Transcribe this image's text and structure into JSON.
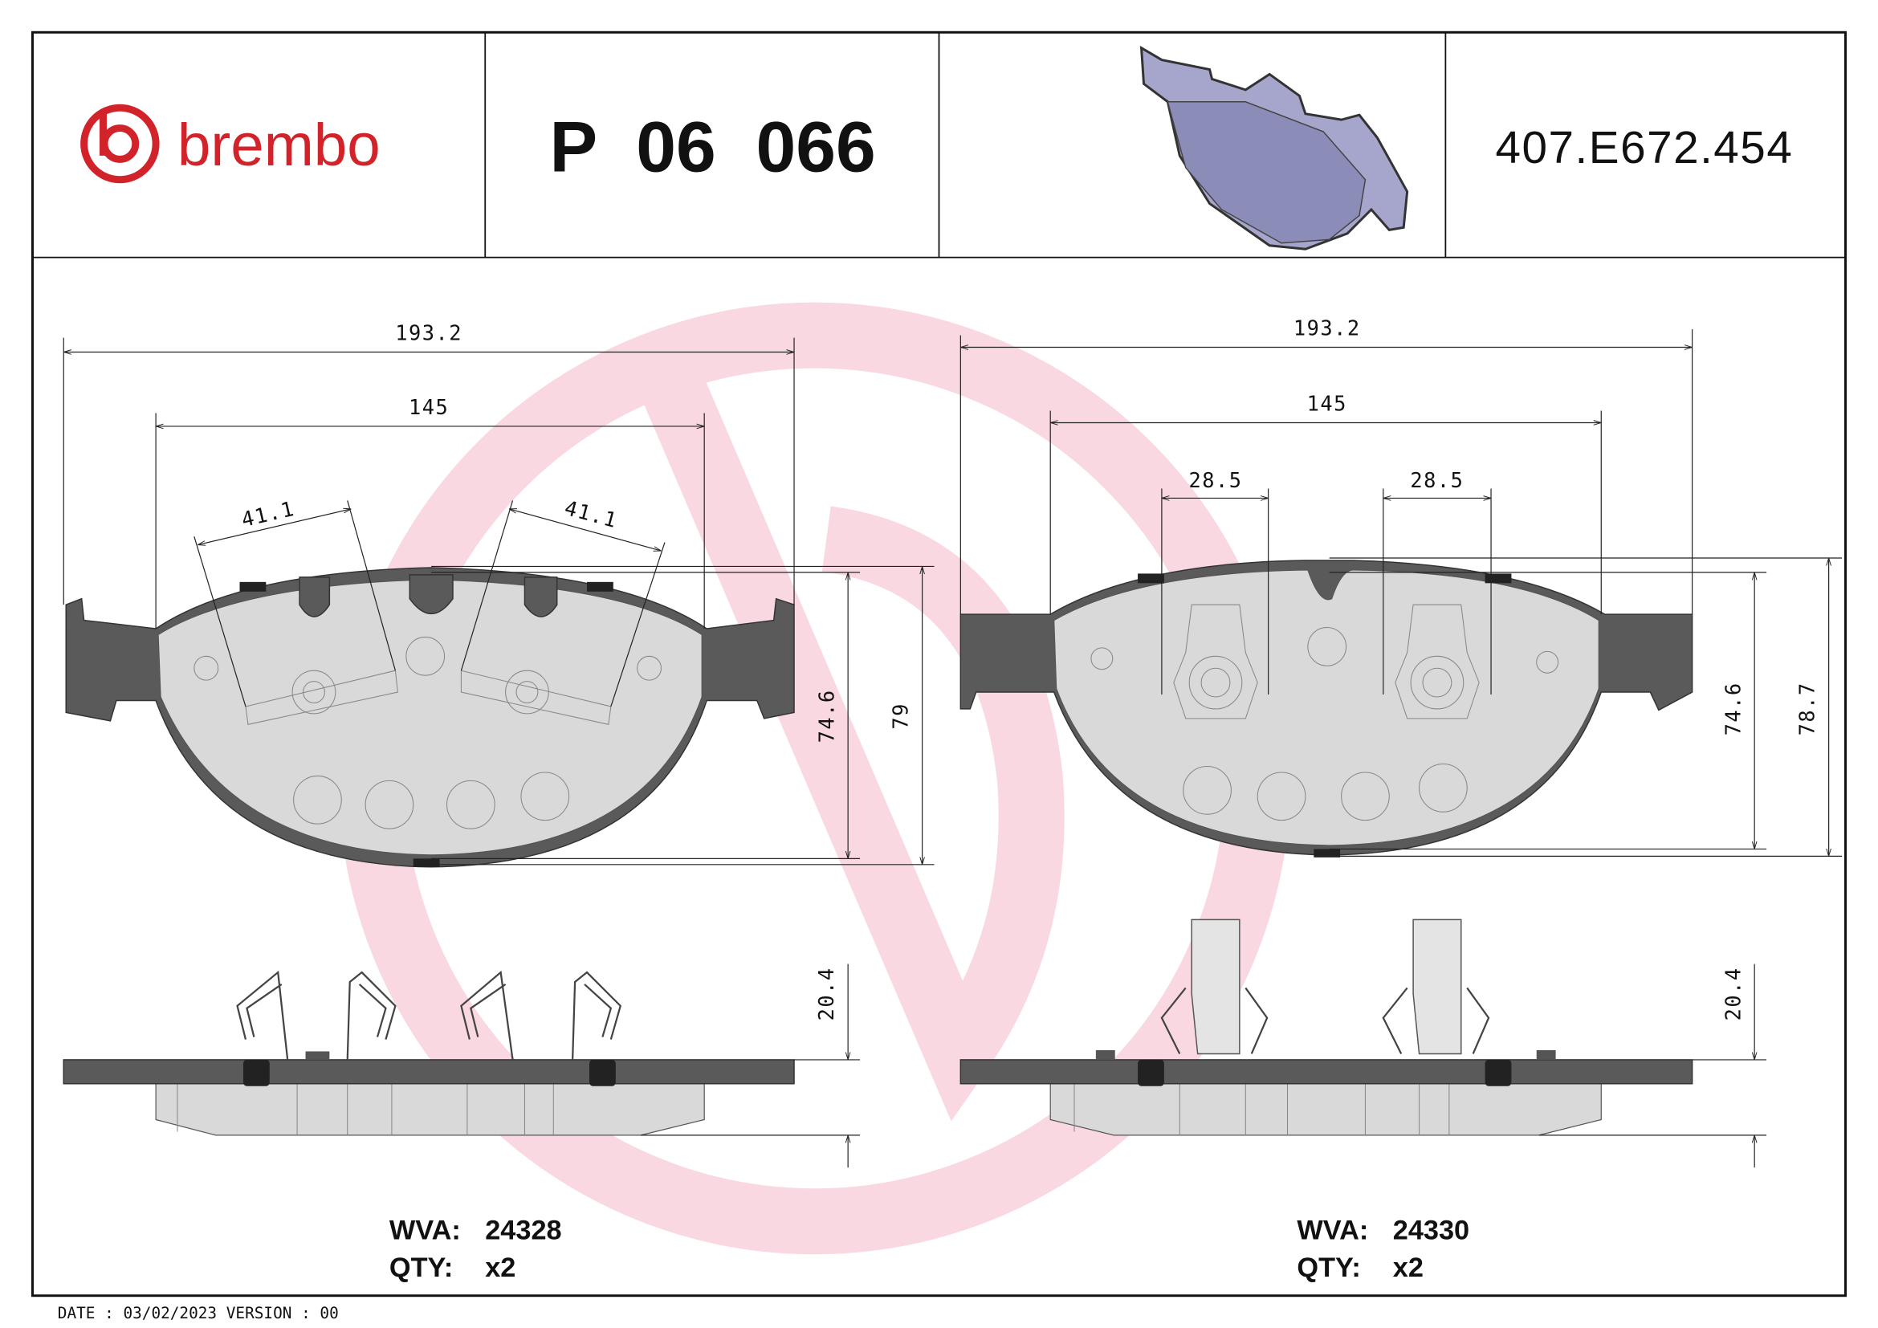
{
  "header": {
    "logo": "brembo",
    "part_number": "P  06  066",
    "code": "407.E672.454"
  },
  "left_pad": {
    "dimensions": {
      "total_width": "193.2",
      "width": "145",
      "clip_left": "41.1",
      "clip_right": "41.1",
      "height": "74.6",
      "total_height": "79",
      "thickness": "20.4"
    },
    "wva_label": "WVA:",
    "wva": "24328",
    "qty_label": "QTY:",
    "qty": "x2"
  },
  "right_pad": {
    "dimensions": {
      "total_width": "193.2",
      "width": "145",
      "clip_left": "28.5",
      "clip_right": "28.5",
      "height": "74.6",
      "total_height": "78.7",
      "thickness": "20.4"
    },
    "wva_label": "WVA:",
    "wva": "24330",
    "qty_label": "QTY:",
    "qty": "x2"
  },
  "footer": "DATE : 03/02/2023 VERSION : 00"
}
